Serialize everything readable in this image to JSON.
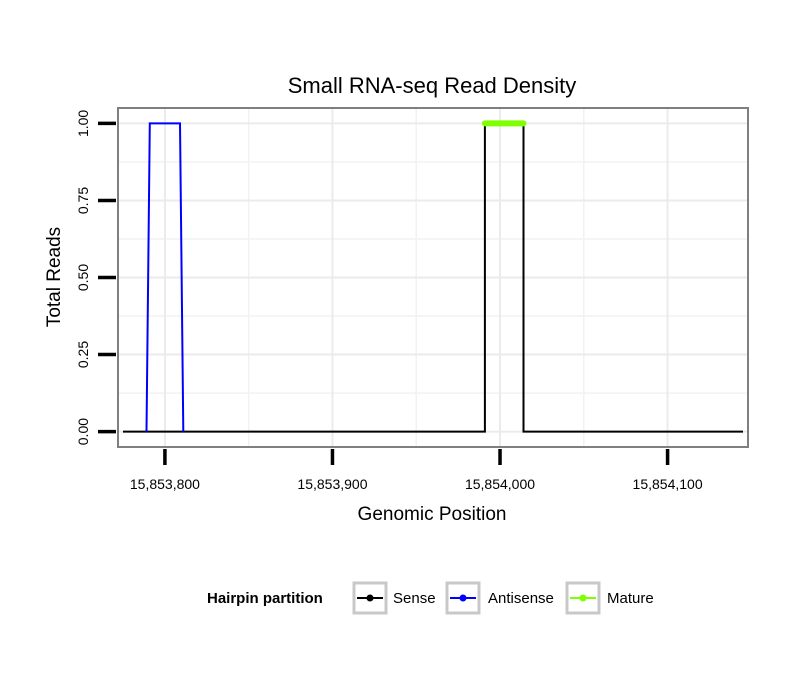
{
  "chart_data": {
    "type": "line",
    "title": "Small RNA-seq Read Density",
    "xlabel": "Genomic Position",
    "ylabel": "Total Reads",
    "xlim": [
      15853772,
      15854148
    ],
    "ylim": [
      -0.05,
      1.05
    ],
    "x_ticks": [
      15853800,
      15853900,
      15854000,
      15854100
    ],
    "x_tick_labels": [
      "15,853,800",
      "15,853,900",
      "15,854,000",
      "15,854,100"
    ],
    "y_ticks": [
      0,
      0.25,
      0.5,
      0.75,
      1.0
    ],
    "y_tick_labels": [
      "0.00",
      "0.25",
      "0.50",
      "0.75",
      "1.00"
    ],
    "grid": true,
    "legend": {
      "title": "Hairpin partition",
      "position": "bottom"
    },
    "series": [
      {
        "name": "Sense",
        "color": "#000000",
        "x": [
          15853775,
          15853991,
          15853991,
          15854014,
          15854014,
          15854145
        ],
        "y": [
          0,
          0,
          1,
          1,
          0,
          0
        ]
      },
      {
        "name": "Antisense",
        "color": "#0000ff",
        "x": [
          15853789,
          15853791,
          15853809,
          15853811
        ],
        "y": [
          0,
          1,
          1,
          0
        ]
      },
      {
        "name": "Mature",
        "color": "#7fff00",
        "x": [
          15853991,
          15854014
        ],
        "y": [
          1,
          1
        ]
      }
    ]
  }
}
